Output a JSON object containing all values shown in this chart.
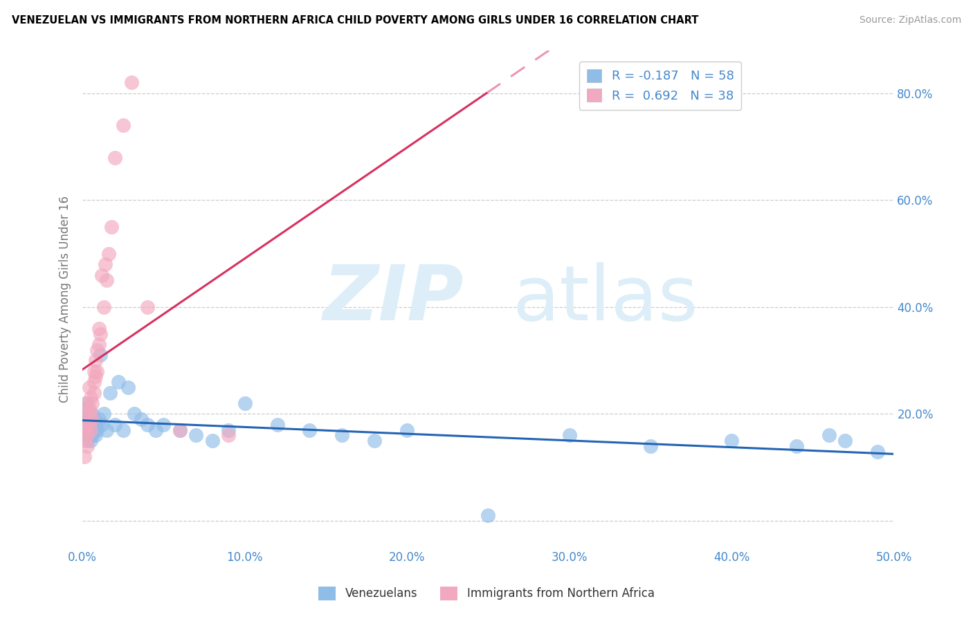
{
  "title": "VENEZUELAN VS IMMIGRANTS FROM NORTHERN AFRICA CHILD POVERTY AMONG GIRLS UNDER 16 CORRELATION CHART",
  "source": "Source: ZipAtlas.com",
  "ylabel": "Child Poverty Among Girls Under 16",
  "xlim": [
    0.0,
    0.5
  ],
  "ylim": [
    -0.05,
    0.88
  ],
  "ytick_vals": [
    0.0,
    0.2,
    0.4,
    0.6,
    0.8
  ],
  "xtick_vals": [
    0.0,
    0.1,
    0.2,
    0.3,
    0.4,
    0.5
  ],
  "xtick_labels": [
    "0.0%",
    "10.0%",
    "20.0%",
    "30.0%",
    "40.0%",
    "50.0%"
  ],
  "ytick_labels_right": [
    "",
    "20.0%",
    "40.0%",
    "60.0%",
    "80.0%"
  ],
  "r_ven": -0.187,
  "n_ven": 58,
  "r_na": 0.692,
  "n_na": 38,
  "blue_color": "#90bce8",
  "pink_color": "#f2a8be",
  "blue_line_color": "#2464b4",
  "pink_line_color": "#d83060",
  "tick_color": "#4488cc",
  "venezuelan_x": [
    0.001,
    0.001,
    0.001,
    0.002,
    0.002,
    0.002,
    0.002,
    0.003,
    0.003,
    0.003,
    0.003,
    0.004,
    0.004,
    0.004,
    0.005,
    0.005,
    0.005,
    0.006,
    0.006,
    0.006,
    0.007,
    0.007,
    0.008,
    0.008,
    0.009,
    0.01,
    0.011,
    0.012,
    0.013,
    0.015,
    0.017,
    0.02,
    0.022,
    0.025,
    0.028,
    0.032,
    0.036,
    0.04,
    0.045,
    0.05,
    0.06,
    0.07,
    0.08,
    0.09,
    0.1,
    0.12,
    0.14,
    0.16,
    0.18,
    0.2,
    0.25,
    0.3,
    0.35,
    0.4,
    0.44,
    0.46,
    0.47,
    0.49
  ],
  "venezuelan_y": [
    0.19,
    0.17,
    0.21,
    0.16,
    0.18,
    0.2,
    0.22,
    0.15,
    0.18,
    0.2,
    0.17,
    0.18,
    0.16,
    0.2,
    0.19,
    0.15,
    0.17,
    0.18,
    0.16,
    0.2,
    0.17,
    0.19,
    0.18,
    0.16,
    0.17,
    0.19,
    0.31,
    0.18,
    0.2,
    0.17,
    0.24,
    0.18,
    0.26,
    0.17,
    0.25,
    0.2,
    0.19,
    0.18,
    0.17,
    0.18,
    0.17,
    0.16,
    0.15,
    0.17,
    0.22,
    0.18,
    0.17,
    0.16,
    0.15,
    0.17,
    0.01,
    0.16,
    0.14,
    0.15,
    0.14,
    0.16,
    0.15,
    0.13
  ],
  "northern_africa_x": [
    0.001,
    0.001,
    0.001,
    0.002,
    0.002,
    0.003,
    0.003,
    0.003,
    0.004,
    0.004,
    0.004,
    0.005,
    0.005,
    0.005,
    0.006,
    0.006,
    0.007,
    0.007,
    0.007,
    0.008,
    0.008,
    0.009,
    0.009,
    0.01,
    0.01,
    0.011,
    0.012,
    0.013,
    0.014,
    0.015,
    0.016,
    0.018,
    0.02,
    0.025,
    0.03,
    0.04,
    0.06,
    0.09
  ],
  "northern_africa_y": [
    0.18,
    0.15,
    0.12,
    0.17,
    0.2,
    0.16,
    0.22,
    0.14,
    0.18,
    0.21,
    0.25,
    0.2,
    0.23,
    0.17,
    0.22,
    0.19,
    0.26,
    0.24,
    0.28,
    0.27,
    0.3,
    0.32,
    0.28,
    0.36,
    0.33,
    0.35,
    0.46,
    0.4,
    0.48,
    0.45,
    0.5,
    0.55,
    0.68,
    0.74,
    0.82,
    0.4,
    0.17,
    0.16
  ]
}
